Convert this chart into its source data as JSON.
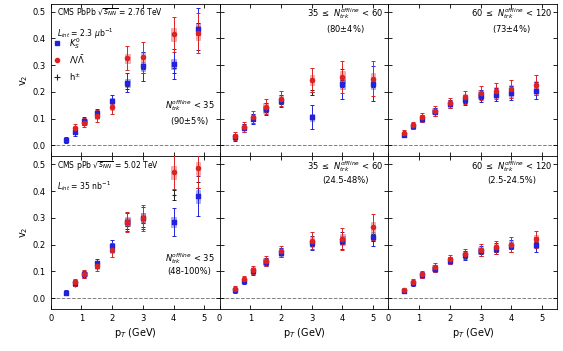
{
  "title_top_left": "CMS PbPb $\\sqrt{s_{NN}}$ = 2.76 TeV",
  "lumi_top": "$L_{int}$ = 2.3 $\\mu$b$^{-1}$",
  "title_bot_left": "CMS pPb $\\sqrt{s_{NN}}$ = 5.02 TeV",
  "lumi_bot": "$L_{int}$ = 35 nb$^{-1}$",
  "xlabel": "p$_{T}$ (GeV)",
  "ylabel": "v$_{2}$",
  "ylim": [
    -0.04,
    0.53
  ],
  "xlim": [
    0,
    5.5
  ],
  "panel_labels_top": [
    "$N_{trk}^{offline}$ < 35\n(90$\\pm$5%)",
    "35 $\\leq$ $N_{trk}^{offline}$ < 60\n(80$\\pm$4%)",
    "60 $\\leq$ $N_{trk}^{offline}$ < 120\n(73$\\pm$4%)"
  ],
  "panel_labels_bot": [
    "$N_{trk}^{offline}$ < 35\n(48-100%)",
    "35 $\\leq$ $N_{trk}^{offline}$ < 60\n(24.5-48%)",
    "60 $\\leq$ $N_{trk}^{offline}$ < 120\n(2.5-24.5%)"
  ],
  "pbpb_ks": {
    "panel0": {
      "pt": [
        0.5,
        0.8,
        1.1,
        1.5,
        2.0,
        2.5,
        3.0,
        4.0,
        4.8
      ],
      "v2": [
        0.02,
        0.05,
        0.09,
        0.12,
        0.165,
        0.235,
        0.295,
        0.305,
        0.435
      ],
      "yerr": [
        0.012,
        0.013,
        0.015,
        0.018,
        0.022,
        0.035,
        0.055,
        0.055,
        0.08
      ],
      "syst": [
        0.006,
        0.007,
        0.009,
        0.01,
        0.012,
        0.015,
        0.018,
        0.019,
        0.022
      ]
    },
    "panel1": {
      "pt": [
        0.5,
        0.8,
        1.1,
        1.5,
        2.0,
        3.0,
        4.0,
        5.0
      ],
      "v2": [
        0.03,
        0.065,
        0.1,
        0.135,
        0.165,
        0.105,
        0.23,
        0.23
      ],
      "yerr": [
        0.012,
        0.016,
        0.018,
        0.022,
        0.022,
        0.045,
        0.055,
        0.065
      ],
      "syst": [
        0.006,
        0.008,
        0.01,
        0.012,
        0.012,
        0.014,
        0.019,
        0.019
      ]
    },
    "panel2": {
      "pt": [
        0.5,
        0.8,
        1.1,
        1.5,
        2.0,
        2.5,
        3.0,
        3.5,
        4.0,
        4.8
      ],
      "v2": [
        0.04,
        0.072,
        0.1,
        0.125,
        0.155,
        0.17,
        0.185,
        0.19,
        0.195,
        0.205
      ],
      "yerr": [
        0.009,
        0.011,
        0.013,
        0.016,
        0.016,
        0.019,
        0.022,
        0.024,
        0.027,
        0.032
      ],
      "syst": [
        0.005,
        0.006,
        0.008,
        0.009,
        0.01,
        0.011,
        0.012,
        0.013,
        0.014,
        0.015
      ]
    }
  },
  "pbpb_lambda": {
    "panel0": {
      "pt": [
        0.8,
        1.1,
        1.5,
        2.0,
        2.5,
        3.0,
        4.0,
        4.8
      ],
      "v2": [
        0.065,
        0.085,
        0.11,
        0.145,
        0.325,
        0.33,
        0.415,
        0.42
      ],
      "yerr": [
        0.016,
        0.017,
        0.022,
        0.028,
        0.045,
        0.058,
        0.065,
        0.075
      ],
      "syst": [
        0.008,
        0.009,
        0.011,
        0.013,
        0.017,
        0.019,
        0.024,
        0.025
      ]
    },
    "panel1": {
      "pt": [
        0.5,
        0.8,
        1.1,
        1.5,
        2.0,
        3.0,
        4.0,
        5.0
      ],
      "v2": [
        0.035,
        0.07,
        0.105,
        0.145,
        0.175,
        0.245,
        0.255,
        0.25
      ],
      "yerr": [
        0.016,
        0.019,
        0.022,
        0.027,
        0.027,
        0.045,
        0.06,
        0.065
      ],
      "syst": [
        0.007,
        0.009,
        0.011,
        0.013,
        0.014,
        0.018,
        0.022,
        0.022
      ]
    },
    "panel2": {
      "pt": [
        0.5,
        0.8,
        1.1,
        1.5,
        2.0,
        2.5,
        3.0,
        3.5,
        4.0,
        4.8
      ],
      "v2": [
        0.045,
        0.075,
        0.105,
        0.13,
        0.16,
        0.18,
        0.195,
        0.205,
        0.21,
        0.225
      ],
      "yerr": [
        0.011,
        0.013,
        0.016,
        0.019,
        0.019,
        0.024,
        0.027,
        0.03,
        0.033,
        0.038
      ],
      "syst": [
        0.006,
        0.007,
        0.009,
        0.01,
        0.011,
        0.012,
        0.013,
        0.014,
        0.015,
        0.016
      ]
    }
  },
  "pbpb_h": {
    "panel0": {
      "pt": [
        0.5,
        0.8,
        1.1,
        1.5,
        2.0,
        2.5,
        3.0,
        4.0,
        4.8
      ],
      "v2": [
        0.022,
        0.052,
        0.082,
        0.112,
        0.158,
        0.222,
        0.285,
        0.29,
        0.435
      ],
      "yerr": [
        0.005,
        0.006,
        0.007,
        0.009,
        0.01,
        0.013,
        0.016,
        0.019,
        0.022
      ]
    },
    "panel1": {
      "pt": [
        0.5,
        0.8,
        1.1,
        1.5,
        2.0,
        3.0,
        4.0,
        5.0
      ],
      "v2": [
        0.03,
        0.063,
        0.098,
        0.133,
        0.163,
        0.198,
        0.232,
        0.232
      ],
      "yerr": [
        0.004,
        0.005,
        0.006,
        0.007,
        0.008,
        0.01,
        0.012,
        0.014
      ]
    },
    "panel2": {
      "pt": [
        0.5,
        0.8,
        1.1,
        1.5,
        2.0,
        2.5,
        3.0,
        3.5,
        4.0,
        4.8
      ],
      "v2": [
        0.038,
        0.068,
        0.098,
        0.123,
        0.153,
        0.168,
        0.183,
        0.193,
        0.198,
        0.208
      ],
      "yerr": [
        0.003,
        0.004,
        0.005,
        0.006,
        0.007,
        0.008,
        0.009,
        0.01,
        0.011,
        0.013
      ]
    }
  },
  "ppb_ks": {
    "panel0": {
      "pt": [
        0.5,
        0.8,
        1.1,
        1.5,
        2.0,
        2.5,
        3.0,
        4.0,
        4.8
      ],
      "v2": [
        0.02,
        0.055,
        0.09,
        0.13,
        0.195,
        0.285,
        0.3,
        0.285,
        0.38
      ],
      "yerr": [
        0.009,
        0.011,
        0.013,
        0.016,
        0.022,
        0.033,
        0.042,
        0.052,
        0.075
      ],
      "syst": [
        0.006,
        0.007,
        0.008,
        0.01,
        0.012,
        0.015,
        0.017,
        0.019,
        0.024
      ]
    },
    "panel1": {
      "pt": [
        0.5,
        0.8,
        1.1,
        1.5,
        2.0,
        3.0,
        4.0,
        5.0
      ],
      "v2": [
        0.03,
        0.065,
        0.1,
        0.135,
        0.17,
        0.205,
        0.215,
        0.23
      ],
      "yerr": [
        0.009,
        0.011,
        0.013,
        0.016,
        0.017,
        0.027,
        0.032,
        0.037
      ],
      "syst": [
        0.005,
        0.007,
        0.009,
        0.01,
        0.011,
        0.014,
        0.016,
        0.016
      ]
    },
    "panel2": {
      "pt": [
        0.5,
        0.8,
        1.1,
        1.5,
        2.0,
        2.5,
        3.0,
        3.5,
        4.0,
        4.8
      ],
      "v2": [
        0.025,
        0.055,
        0.085,
        0.11,
        0.14,
        0.16,
        0.175,
        0.185,
        0.195,
        0.2
      ],
      "yerr": [
        0.007,
        0.009,
        0.011,
        0.013,
        0.014,
        0.016,
        0.018,
        0.02,
        0.022,
        0.027
      ],
      "syst": [
        0.004,
        0.005,
        0.007,
        0.008,
        0.009,
        0.01,
        0.011,
        0.012,
        0.013,
        0.014
      ]
    }
  },
  "ppb_lambda": {
    "panel0": {
      "pt": [
        0.8,
        1.1,
        1.5,
        2.0,
        2.5,
        3.0,
        4.0,
        4.8
      ],
      "v2": [
        0.06,
        0.09,
        0.12,
        0.18,
        0.285,
        0.3,
        0.47,
        0.485
      ],
      "yerr": [
        0.013,
        0.016,
        0.019,
        0.027,
        0.037,
        0.048,
        0.063,
        0.075
      ],
      "syst": [
        0.007,
        0.009,
        0.011,
        0.013,
        0.017,
        0.019,
        0.024,
        0.025
      ]
    },
    "panel1": {
      "pt": [
        0.5,
        0.8,
        1.1,
        1.5,
        2.0,
        3.0,
        4.0,
        5.0
      ],
      "v2": [
        0.035,
        0.07,
        0.105,
        0.14,
        0.175,
        0.215,
        0.22,
        0.265
      ],
      "yerr": [
        0.011,
        0.013,
        0.016,
        0.019,
        0.021,
        0.032,
        0.042,
        0.048
      ],
      "syst": [
        0.006,
        0.008,
        0.01,
        0.011,
        0.012,
        0.015,
        0.018,
        0.019
      ]
    },
    "panel2": {
      "pt": [
        0.5,
        0.8,
        1.1,
        1.5,
        2.0,
        2.5,
        3.0,
        3.5,
        4.0,
        4.8
      ],
      "v2": [
        0.03,
        0.06,
        0.09,
        0.115,
        0.145,
        0.165,
        0.18,
        0.19,
        0.2,
        0.22
      ],
      "yerr": [
        0.009,
        0.011,
        0.013,
        0.016,
        0.017,
        0.02,
        0.022,
        0.025,
        0.028,
        0.032
      ],
      "syst": [
        0.005,
        0.006,
        0.008,
        0.009,
        0.01,
        0.011,
        0.012,
        0.013,
        0.014,
        0.015
      ]
    }
  },
  "ppb_h": {
    "panel0": {
      "pt": [
        0.5,
        0.8,
        1.1,
        1.5,
        2.0,
        2.5,
        3.0,
        4.0,
        4.8
      ],
      "v2": [
        0.02,
        0.05,
        0.085,
        0.12,
        0.18,
        0.27,
        0.28,
        0.385,
        0.41
      ],
      "yerr": [
        0.004,
        0.005,
        0.006,
        0.007,
        0.009,
        0.013,
        0.016,
        0.019,
        0.023
      ]
    },
    "panel1": {
      "pt": [
        0.5,
        0.8,
        1.1,
        1.5,
        2.0,
        3.0,
        4.0,
        5.0
      ],
      "v2": [
        0.03,
        0.063,
        0.098,
        0.13,
        0.168,
        0.203,
        0.213,
        0.228
      ],
      "yerr": [
        0.003,
        0.004,
        0.005,
        0.006,
        0.007,
        0.009,
        0.011,
        0.013
      ]
    },
    "panel2": {
      "pt": [
        0.5,
        0.8,
        1.1,
        1.5,
        2.0,
        2.5,
        3.0,
        3.5,
        4.0,
        4.8
      ],
      "v2": [
        0.025,
        0.053,
        0.083,
        0.108,
        0.138,
        0.158,
        0.173,
        0.183,
        0.193,
        0.208
      ],
      "yerr": [
        0.002,
        0.003,
        0.004,
        0.005,
        0.006,
        0.007,
        0.008,
        0.009,
        0.01,
        0.012
      ]
    }
  },
  "colors": {
    "ks": "#2222dd",
    "lambda": "#dd2222",
    "h": "#222222"
  }
}
